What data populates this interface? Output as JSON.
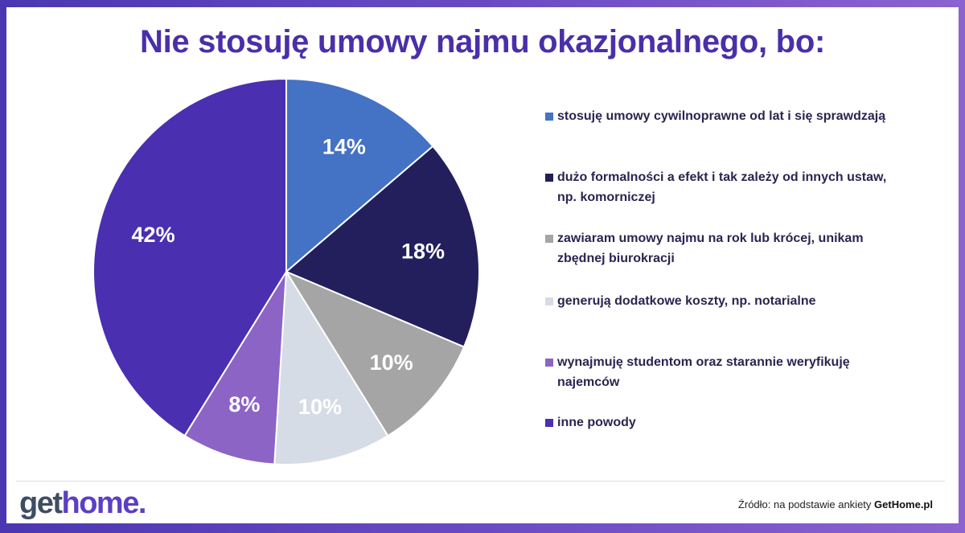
{
  "title": "Nie stosuję umowy najmu okazjonalnego, bo:",
  "chart_data": {
    "type": "pie",
    "title": "Nie stosuję umowy najmu okazjonalnego, bo:",
    "unit": "%",
    "slices": [
      {
        "label": "stosuję umowy cywilnoprawne od lat i się sprawdzają",
        "value": 14,
        "display": "14%",
        "color": "#4472c4",
        "text_color": "#ffffff"
      },
      {
        "label": "dużo formalności a efekt i tak zależy od innych ustaw, np. komorniczej",
        "value": 18,
        "display": "18%",
        "color": "#231f5c",
        "text_color": "#ffffff"
      },
      {
        "label": "zawiaram umowy najmu na rok lub krócej, unikam zbędnej biurokracji",
        "value": 10,
        "display": "10%",
        "color": "#a5a5a5",
        "text_color": "#ffffff"
      },
      {
        "label": "generują dodatkowe koszty, np. notarialne",
        "value": 10,
        "display": "10%",
        "color": "#d6dce5",
        "text_color": "#ffffff"
      },
      {
        "label": "wynajmuję studentom oraz starannie weryfikuję najemców",
        "value": 8,
        "display": "8%",
        "color": "#8c64c6",
        "text_color": "#ffffff"
      },
      {
        "label": "inne powody",
        "value": 42,
        "display": "42%",
        "color": "#4a2fb0",
        "text_color": "#ffffff"
      }
    ],
    "legend_position": "right",
    "start_angle_deg": 0,
    "direction": "clockwise"
  },
  "legend": {
    "items": [
      {
        "lines": [
          "stosuję umowy cywilnoprawne od lat i się sprawdzają"
        ],
        "color": "#4472c4"
      },
      {
        "lines": [
          "dużo formalności a efekt i tak zależy od innych ustaw,",
          "np. komorniczej"
        ],
        "color": "#231f5c"
      },
      {
        "lines": [
          "zawiaram umowy najmu na rok lub krócej, unikam",
          "zbędnej biurokracji"
        ],
        "color": "#a5a5a5"
      },
      {
        "lines": [
          "generują dodatkowe koszty, np. notarialne"
        ],
        "color": "#d6dce5"
      },
      {
        "lines": [
          "wynajmuję studentom oraz starannie weryfikuję",
          "najemców"
        ],
        "color": "#8c64c6"
      },
      {
        "lines": [
          "inne powody"
        ],
        "color": "#4a2fb0"
      }
    ]
  },
  "footer": {
    "logo_get": "get",
    "logo_home": "home",
    "logo_dot": ".",
    "source_prefix": "Źródło: na podstawie ankiety ",
    "source_brand": "GetHome.pl"
  },
  "colors": {
    "frame": "#5b3fb8",
    "title": "#4a2fa8",
    "card": "#ffffff"
  }
}
